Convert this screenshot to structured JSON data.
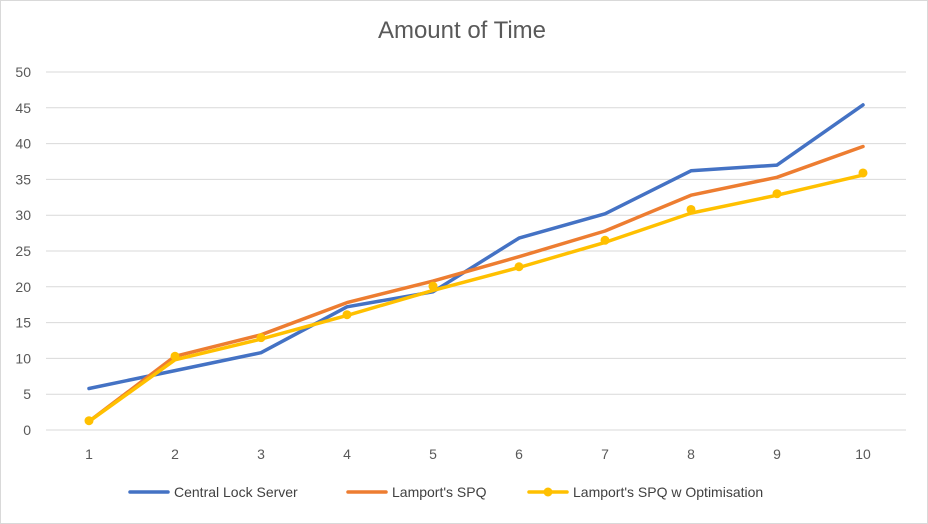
{
  "chart_data": {
    "type": "line",
    "title": "Amount of Time",
    "xlabel": "",
    "ylabel": "",
    "x": [
      "1",
      "2",
      "3",
      "4",
      "5",
      "6",
      "7",
      "8",
      "9",
      "10"
    ],
    "ylim": [
      0,
      50
    ],
    "yticks": [
      0,
      5,
      10,
      15,
      20,
      25,
      30,
      35,
      40,
      45,
      50
    ],
    "grid": true,
    "legend_position": "bottom",
    "series": [
      {
        "name": "Central Lock Server",
        "color": "#4472C4",
        "markers": false,
        "values": [
          5.8,
          8.3,
          10.8,
          17.2,
          19.3,
          26.8,
          30.2,
          36.2,
          37.0,
          45.4
        ]
      },
      {
        "name": "Lamport's SPQ",
        "color": "#ED7D31",
        "markers": false,
        "values": [
          1.2,
          10.3,
          13.3,
          17.8,
          20.8,
          24.2,
          27.8,
          32.8,
          35.3,
          39.6
        ]
      },
      {
        "name": "Lamport's SPQ w Optimisation",
        "color": "#FFC000",
        "markers": true,
        "values": [
          1.2,
          9.8,
          12.7,
          16.0,
          19.5,
          22.7,
          26.2,
          30.3,
          32.8,
          35.6
        ],
        "marker_values": [
          1.3,
          10.3,
          12.9,
          16.1,
          20.1,
          22.8,
          26.5,
          30.8,
          33.0,
          35.9
        ]
      }
    ]
  }
}
